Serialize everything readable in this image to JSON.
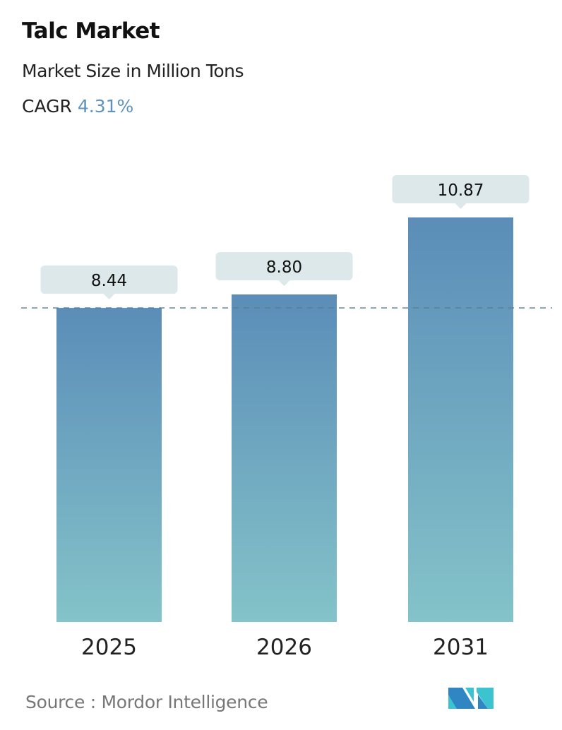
{
  "header": {
    "title": "Talc Market",
    "subtitle": "Market Size in Million Tons",
    "cagr_label": "CAGR",
    "cagr_value": "4.31%"
  },
  "chart_data": {
    "type": "bar",
    "categories": [
      "2025",
      "2026",
      "2031"
    ],
    "values": [
      8.44,
      8.8,
      10.87
    ],
    "value_labels": [
      "8.44",
      "8.80",
      "10.87"
    ],
    "ylim": [
      0,
      10.87
    ],
    "grid": false,
    "reference_line": {
      "value": 8.44,
      "style": "dashed"
    },
    "colors": {
      "bar_top": "#5b8db8",
      "bar_bottom": "#84c3c9",
      "label_box": "#dde8ea",
      "ref_line": "#5a7f94"
    }
  },
  "footer": {
    "source": "Source :  Mordor Intelligence",
    "logo": "Mordor Intelligence logo"
  }
}
